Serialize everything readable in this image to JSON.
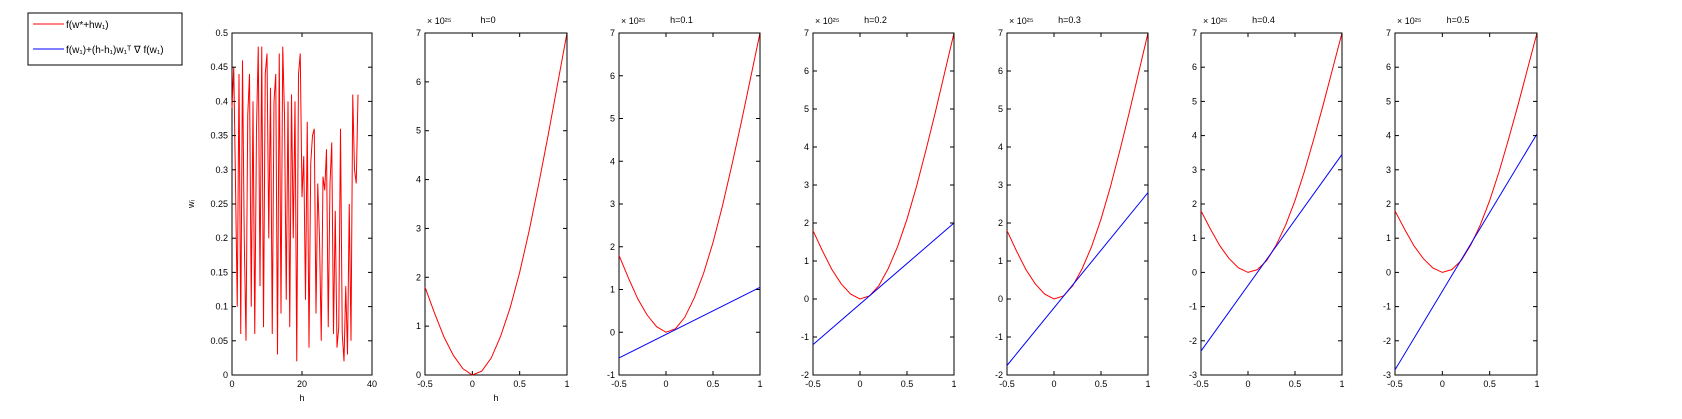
{
  "colors": {
    "red": "#ff0000",
    "blue": "#0000ff",
    "axis": "#000000",
    "background": "#ffffff"
  },
  "legend": {
    "entries": [
      {
        "label": "f(w*+hw₁)",
        "color": "#ff0000"
      },
      {
        "label": "f(w₁)+(h-h₁)w₁ᵀ ∇ f(w₁)",
        "color": "#0000ff"
      }
    ]
  },
  "chart_data": [
    {
      "type": "line",
      "title": "",
      "xlabel": "h",
      "ylabel": "wᵢ",
      "xlim": [
        0,
        40
      ],
      "ylim": [
        0,
        0.5
      ],
      "xticks": [
        "0",
        "20",
        "40"
      ],
      "yticks": [
        "0",
        "0.05",
        "0.1",
        "0.15",
        "0.2",
        "0.25",
        "0.3",
        "0.35",
        "0.4",
        "0.45",
        "0.5"
      ],
      "series": [
        {
          "color": "#ff0000",
          "x": [
            0,
            0.5,
            1,
            1.5,
            2,
            2.5,
            3,
            3.5,
            4,
            4.5,
            5,
            5.5,
            6,
            6.5,
            7,
            7.5,
            8,
            8.5,
            9,
            9.5,
            10,
            10.5,
            11,
            11.5,
            12,
            12.5,
            13,
            13.5,
            14,
            14.5,
            15,
            15.5,
            16,
            16.5,
            17,
            17.5,
            18,
            18.5,
            19,
            19.5,
            20,
            20.5,
            21,
            21.5,
            22,
            22.5,
            23,
            23.5,
            24,
            24.5,
            25,
            25.5,
            26,
            26.5,
            27,
            27.5,
            28,
            28.5,
            29,
            29.5,
            30,
            30.5,
            31,
            31.5,
            32,
            32.5,
            33,
            33.5,
            34,
            34.5,
            35,
            35.5,
            36
          ],
          "y": [
            0.39,
            0.45,
            0.28,
            0.1,
            0.44,
            0.06,
            0.46,
            0.2,
            0.05,
            0.38,
            0.44,
            0.1,
            0.4,
            0.06,
            0.36,
            0.48,
            0.13,
            0.48,
            0.07,
            0.44,
            0.47,
            0.2,
            0.42,
            0.06,
            0.4,
            0.44,
            0.03,
            0.47,
            0.09,
            0.48,
            0.38,
            0.11,
            0.4,
            0.07,
            0.41,
            0.2,
            0.4,
            0.02,
            0.44,
            0.47,
            0.26,
            0.32,
            0.11,
            0.37,
            0.04,
            0.31,
            0.35,
            0.36,
            0.09,
            0.28,
            0.2,
            0.05,
            0.29,
            0.27,
            0.33,
            0.07,
            0.28,
            0.34,
            0.06,
            0.24,
            0.04,
            0.07,
            0.36,
            0.06,
            0.02,
            0.13,
            0.03,
            0.25,
            0.05,
            0.41,
            0.3,
            0.28,
            0.41
          ]
        }
      ]
    },
    {
      "type": "line",
      "title": "h=0",
      "xlabel": "h",
      "ylabel": "",
      "exponent": "× 10²⁵",
      "xlim": [
        -0.5,
        1
      ],
      "ylim": [
        0,
        7
      ],
      "xticks": [
        "-0.5",
        "0",
        "0.5",
        "1"
      ],
      "yticks": [
        "0",
        "1",
        "2",
        "3",
        "4",
        "5",
        "6",
        "7"
      ],
      "series": [
        {
          "color": "#ff0000",
          "x": [
            -0.5,
            -0.4,
            -0.3,
            -0.2,
            -0.1,
            0,
            0.1,
            0.2,
            0.3,
            0.4,
            0.5,
            0.6,
            0.7,
            0.8,
            0.9,
            1.0
          ],
          "y": [
            1.8,
            1.27,
            0.78,
            0.4,
            0.13,
            0.0,
            0.08,
            0.35,
            0.8,
            1.38,
            2.1,
            2.95,
            3.9,
            4.9,
            5.95,
            7.0
          ]
        }
      ]
    },
    {
      "type": "line",
      "title": "h=0.1",
      "xlabel": "",
      "ylabel": "",
      "exponent": "× 10²⁵",
      "xlim": [
        -0.5,
        1
      ],
      "ylim": [
        -1,
        7
      ],
      "xticks": [
        "-0.5",
        "0",
        "0.5",
        "1"
      ],
      "yticks": [
        "-1",
        "0",
        "1",
        "2",
        "3",
        "4",
        "5",
        "6",
        "7"
      ],
      "series": [
        {
          "color": "#ff0000",
          "x": [
            -0.5,
            -0.4,
            -0.3,
            -0.2,
            -0.1,
            0,
            0.1,
            0.2,
            0.3,
            0.4,
            0.5,
            0.6,
            0.7,
            0.8,
            0.9,
            1.0
          ],
          "y": [
            1.8,
            1.27,
            0.78,
            0.4,
            0.13,
            0.0,
            0.08,
            0.35,
            0.8,
            1.38,
            2.1,
            2.95,
            3.9,
            4.9,
            5.95,
            7.0
          ]
        },
        {
          "color": "#0000ff",
          "x": [
            -0.5,
            1.0
          ],
          "y": [
            -0.6,
            1.05
          ]
        }
      ]
    },
    {
      "type": "line",
      "title": "h=0.2",
      "xlabel": "",
      "ylabel": "",
      "exponent": "× 10²⁵",
      "xlim": [
        -0.5,
        1
      ],
      "ylim": [
        -2,
        7
      ],
      "xticks": [
        "-0.5",
        "0",
        "0.5",
        "1"
      ],
      "yticks": [
        "-2",
        "-1",
        "0",
        "1",
        "2",
        "3",
        "4",
        "5",
        "6",
        "7"
      ],
      "series": [
        {
          "color": "#ff0000",
          "x": [
            -0.5,
            -0.4,
            -0.3,
            -0.2,
            -0.1,
            0,
            0.1,
            0.2,
            0.3,
            0.4,
            0.5,
            0.6,
            0.7,
            0.8,
            0.9,
            1.0
          ],
          "y": [
            1.8,
            1.27,
            0.78,
            0.4,
            0.13,
            0.0,
            0.08,
            0.35,
            0.8,
            1.38,
            2.1,
            2.95,
            3.9,
            4.9,
            5.95,
            7.0
          ]
        },
        {
          "color": "#0000ff",
          "x": [
            -0.5,
            1.0
          ],
          "y": [
            -1.2,
            2.0
          ]
        }
      ]
    },
    {
      "type": "line",
      "title": "h=0.3",
      "xlabel": "",
      "ylabel": "",
      "exponent": "× 10²⁵",
      "xlim": [
        -0.5,
        1
      ],
      "ylim": [
        -2,
        7
      ],
      "xticks": [
        "-0.5",
        "0",
        "0.5",
        "1"
      ],
      "yticks": [
        "-2",
        "-1",
        "0",
        "1",
        "2",
        "3",
        "4",
        "5",
        "6",
        "7"
      ],
      "series": [
        {
          "color": "#ff0000",
          "x": [
            -0.5,
            -0.4,
            -0.3,
            -0.2,
            -0.1,
            0,
            0.1,
            0.2,
            0.3,
            0.4,
            0.5,
            0.6,
            0.7,
            0.8,
            0.9,
            1.0
          ],
          "y": [
            1.8,
            1.27,
            0.78,
            0.4,
            0.13,
            0.0,
            0.08,
            0.35,
            0.8,
            1.38,
            2.1,
            2.95,
            3.9,
            4.9,
            5.95,
            7.0
          ]
        },
        {
          "color": "#0000ff",
          "x": [
            -0.5,
            1.0
          ],
          "y": [
            -1.75,
            2.8
          ]
        }
      ]
    },
    {
      "type": "line",
      "title": "h=0.4",
      "xlabel": "",
      "ylabel": "",
      "exponent": "× 10²⁵",
      "xlim": [
        -0.5,
        1
      ],
      "ylim": [
        -3,
        7
      ],
      "xticks": [
        "-0.5",
        "0",
        "0.5",
        "1"
      ],
      "yticks": [
        "-3",
        "-2",
        "-1",
        "0",
        "1",
        "2",
        "3",
        "4",
        "5",
        "6",
        "7"
      ],
      "series": [
        {
          "color": "#ff0000",
          "x": [
            -0.5,
            -0.4,
            -0.3,
            -0.2,
            -0.1,
            0,
            0.1,
            0.2,
            0.3,
            0.4,
            0.5,
            0.6,
            0.7,
            0.8,
            0.9,
            1.0
          ],
          "y": [
            1.8,
            1.27,
            0.78,
            0.4,
            0.13,
            0.0,
            0.08,
            0.35,
            0.8,
            1.38,
            2.1,
            2.95,
            3.9,
            4.9,
            5.95,
            7.0
          ]
        },
        {
          "color": "#0000ff",
          "x": [
            -0.5,
            1.0
          ],
          "y": [
            -2.3,
            3.45
          ]
        }
      ]
    },
    {
      "type": "line",
      "title": "h=0.5",
      "xlabel": "",
      "ylabel": "",
      "exponent": "× 10²⁵",
      "xlim": [
        -0.5,
        1
      ],
      "ylim": [
        -3,
        7
      ],
      "xticks": [
        "-0.5",
        "0",
        "0.5",
        "1"
      ],
      "yticks": [
        "-3",
        "-2",
        "-1",
        "0",
        "1",
        "2",
        "3",
        "4",
        "5",
        "6",
        "7"
      ],
      "series": [
        {
          "color": "#ff0000",
          "x": [
            -0.5,
            -0.4,
            -0.3,
            -0.2,
            -0.1,
            0,
            0.1,
            0.2,
            0.3,
            0.4,
            0.5,
            0.6,
            0.7,
            0.8,
            0.9,
            1.0
          ],
          "y": [
            1.8,
            1.27,
            0.78,
            0.4,
            0.13,
            0.0,
            0.08,
            0.35,
            0.8,
            1.38,
            2.1,
            2.95,
            3.9,
            4.9,
            5.95,
            7.0
          ]
        },
        {
          "color": "#0000ff",
          "x": [
            -0.5,
            1.0
          ],
          "y": [
            -2.85,
            4.05
          ]
        }
      ]
    }
  ]
}
